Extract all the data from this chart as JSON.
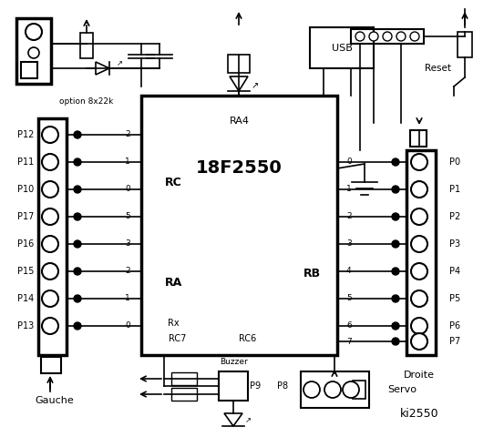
{
  "bg_color": "#ffffff",
  "line_color": "#000000",
  "title": "ki2550",
  "chip_label": "18F2550",
  "chip_sublabel": "RA4",
  "left_labels": [
    "P12",
    "P11",
    "P10",
    "P17",
    "P16",
    "P15",
    "P14",
    "P13"
  ],
  "right_labels": [
    "P0",
    "P1",
    "P2",
    "P3",
    "P4",
    "P5",
    "P6",
    "P7"
  ],
  "rc_labels": [
    "2",
    "1",
    "0"
  ],
  "ra_labels": [
    "5",
    "3",
    "2",
    "1",
    "0"
  ],
  "rb_labels": [
    "0",
    "1",
    "2",
    "3",
    "4",
    "5",
    "6",
    "7"
  ]
}
